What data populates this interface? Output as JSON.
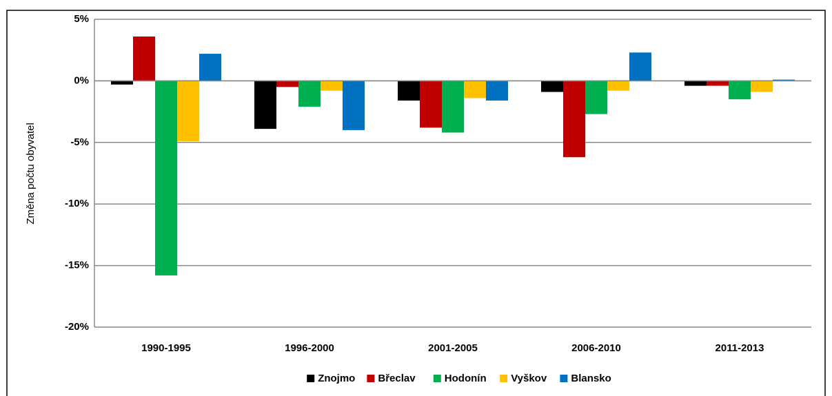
{
  "chart_data": {
    "type": "bar",
    "y_label": "Změna počtu obyvatel",
    "categories": [
      "1990-1995",
      "1996-2000",
      "2001-2005",
      "2006-2010",
      "2011-2013"
    ],
    "series": [
      {
        "name": "Znojmo",
        "color": "#000000",
        "values": [
          -0.3,
          -3.9,
          -1.6,
          -0.9,
          -0.4
        ]
      },
      {
        "name": "Břeclav",
        "color": "#c00000",
        "values": [
          3.6,
          -0.5,
          -3.8,
          -6.2,
          -0.4
        ]
      },
      {
        "name": "Hodonín",
        "color": "#00b050",
        "values": [
          -15.8,
          -2.1,
          -4.2,
          -2.7,
          -1.5
        ]
      },
      {
        "name": "Vyškov",
        "color": "#ffc000",
        "values": [
          -4.9,
          -0.8,
          -1.4,
          -0.8,
          -0.9
        ]
      },
      {
        "name": "Blansko",
        "color": "#0070c0",
        "values": [
          2.2,
          -4.0,
          -1.6,
          2.3,
          0.1
        ]
      }
    ],
    "ylim": [
      -20,
      5
    ],
    "yticks": [
      {
        "value": -20,
        "label": "-20%"
      },
      {
        "value": -15,
        "label": "-15%"
      },
      {
        "value": -10,
        "label": "-10%"
      },
      {
        "value": -5,
        "label": "-5%"
      },
      {
        "value": 0,
        "label": "0%"
      },
      {
        "value": 5,
        "label": "5%"
      }
    ],
    "grid": true,
    "legend": "bottom"
  }
}
